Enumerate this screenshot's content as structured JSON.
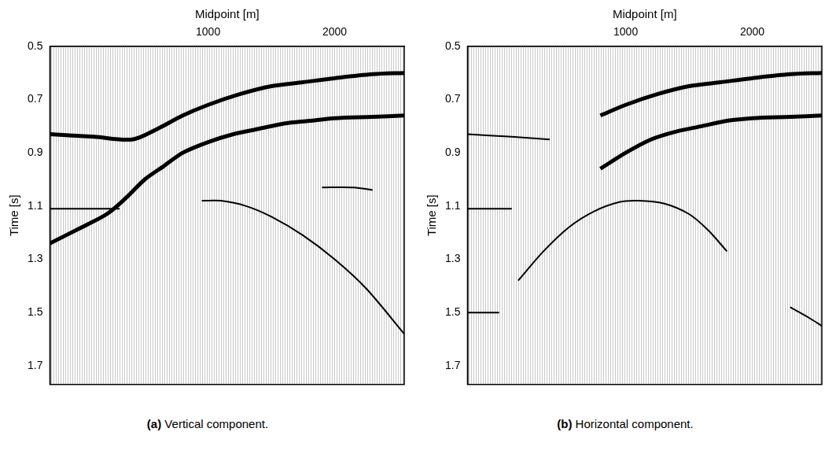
{
  "chart_data": [
    {
      "type": "line",
      "title": "(a) Vertical component.",
      "x_label": "Midpoint [m]",
      "y_label": "Time [s]",
      "xlim": [
        -250,
        2550
      ],
      "xticks": [
        1000,
        2000
      ],
      "ylim": [
        0.5,
        1.77
      ],
      "yticks": [
        0.5,
        0.7,
        0.9,
        1.1,
        1.3,
        1.5,
        1.7
      ],
      "grid": false,
      "legend": false,
      "series": [
        {
          "color": "#000000",
          "line_style": "bold",
          "points": [
            [
              -250,
              0.83
            ],
            [
              100,
              0.84
            ],
            [
              400,
              0.85
            ],
            [
              600,
              0.81
            ],
            [
              800,
              0.76
            ],
            [
              1000,
              0.72
            ],
            [
              1250,
              0.68
            ],
            [
              1500,
              0.65
            ],
            [
              1750,
              0.635
            ],
            [
              2000,
              0.62
            ],
            [
              2300,
              0.605
            ],
            [
              2550,
              0.6
            ]
          ]
        },
        {
          "color": "#000000",
          "line_style": "bold",
          "points": [
            [
              -250,
              1.24
            ],
            [
              0,
              1.18
            ],
            [
              200,
              1.13
            ],
            [
              350,
              1.07
            ],
            [
              500,
              1.0
            ],
            [
              650,
              0.95
            ],
            [
              800,
              0.9
            ],
            [
              1000,
              0.86
            ],
            [
              1200,
              0.83
            ],
            [
              1400,
              0.81
            ],
            [
              1600,
              0.79
            ],
            [
              1800,
              0.78
            ],
            [
              2000,
              0.77
            ],
            [
              2300,
              0.765
            ],
            [
              2550,
              0.76
            ]
          ]
        },
        {
          "color": "#000000",
          "line_style": "thin",
          "points": [
            [
              -250,
              1.11
            ],
            [
              0,
              1.11
            ],
            [
              300,
              1.11
            ]
          ]
        },
        {
          "color": "#000000",
          "line_style": "thin",
          "points": [
            [
              950,
              1.08
            ],
            [
              1100,
              1.08
            ],
            [
              1300,
              1.1
            ],
            [
              1500,
              1.14
            ],
            [
              1750,
              1.21
            ],
            [
              2000,
              1.3
            ],
            [
              2250,
              1.41
            ],
            [
              2550,
              1.58
            ]
          ]
        },
        {
          "color": "#000000",
          "line_style": "thin",
          "points": [
            [
              1900,
              1.03
            ],
            [
              2150,
              1.03
            ],
            [
              2300,
              1.04
            ]
          ]
        }
      ]
    },
    {
      "type": "line",
      "title": "(b) Horizontal component.",
      "x_label": "Midpoint [m]",
      "y_label": "Time [s]",
      "xlim": [
        -250,
        2550
      ],
      "xticks": [
        1000,
        2000
      ],
      "ylim": [
        0.5,
        1.77
      ],
      "yticks": [
        0.5,
        0.7,
        0.9,
        1.1,
        1.3,
        1.5,
        1.7
      ],
      "grid": false,
      "legend": false,
      "series": [
        {
          "color": "#000000",
          "line_style": "thin",
          "points": [
            [
              -250,
              0.83
            ],
            [
              100,
              0.84
            ],
            [
              400,
              0.85
            ]
          ]
        },
        {
          "color": "#000000",
          "line_style": "bold",
          "points": [
            [
              800,
              0.76
            ],
            [
              1000,
              0.72
            ],
            [
              1250,
              0.68
            ],
            [
              1500,
              0.65
            ],
            [
              1750,
              0.635
            ],
            [
              2000,
              0.62
            ],
            [
              2300,
              0.605
            ],
            [
              2550,
              0.6
            ]
          ]
        },
        {
          "color": "#000000",
          "line_style": "bold",
          "points": [
            [
              800,
              0.96
            ],
            [
              1000,
              0.9
            ],
            [
              1200,
              0.85
            ],
            [
              1400,
              0.82
            ],
            [
              1600,
              0.8
            ],
            [
              1800,
              0.78
            ],
            [
              2000,
              0.77
            ],
            [
              2300,
              0.765
            ],
            [
              2550,
              0.76
            ]
          ]
        },
        {
          "color": "#000000",
          "line_style": "thin",
          "points": [
            [
              -250,
              1.11
            ],
            [
              0,
              1.11
            ],
            [
              100,
              1.11
            ]
          ]
        },
        {
          "color": "#000000",
          "line_style": "thin",
          "points": [
            [
              -250,
              1.5
            ],
            [
              -100,
              1.5
            ],
            [
              0,
              1.5
            ]
          ]
        },
        {
          "color": "#000000",
          "line_style": "thin",
          "points": [
            [
              150,
              1.38
            ],
            [
              350,
              1.27
            ],
            [
              550,
              1.18
            ],
            [
              750,
              1.12
            ],
            [
              950,
              1.085
            ],
            [
              1100,
              1.08
            ],
            [
              1300,
              1.09
            ],
            [
              1500,
              1.13
            ],
            [
              1650,
              1.19
            ],
            [
              1800,
              1.27
            ]
          ]
        },
        {
          "color": "#000000",
          "line_style": "thin",
          "points": [
            [
              2300,
              1.48
            ],
            [
              2450,
              1.52
            ],
            [
              2550,
              1.55
            ]
          ]
        }
      ]
    }
  ]
}
